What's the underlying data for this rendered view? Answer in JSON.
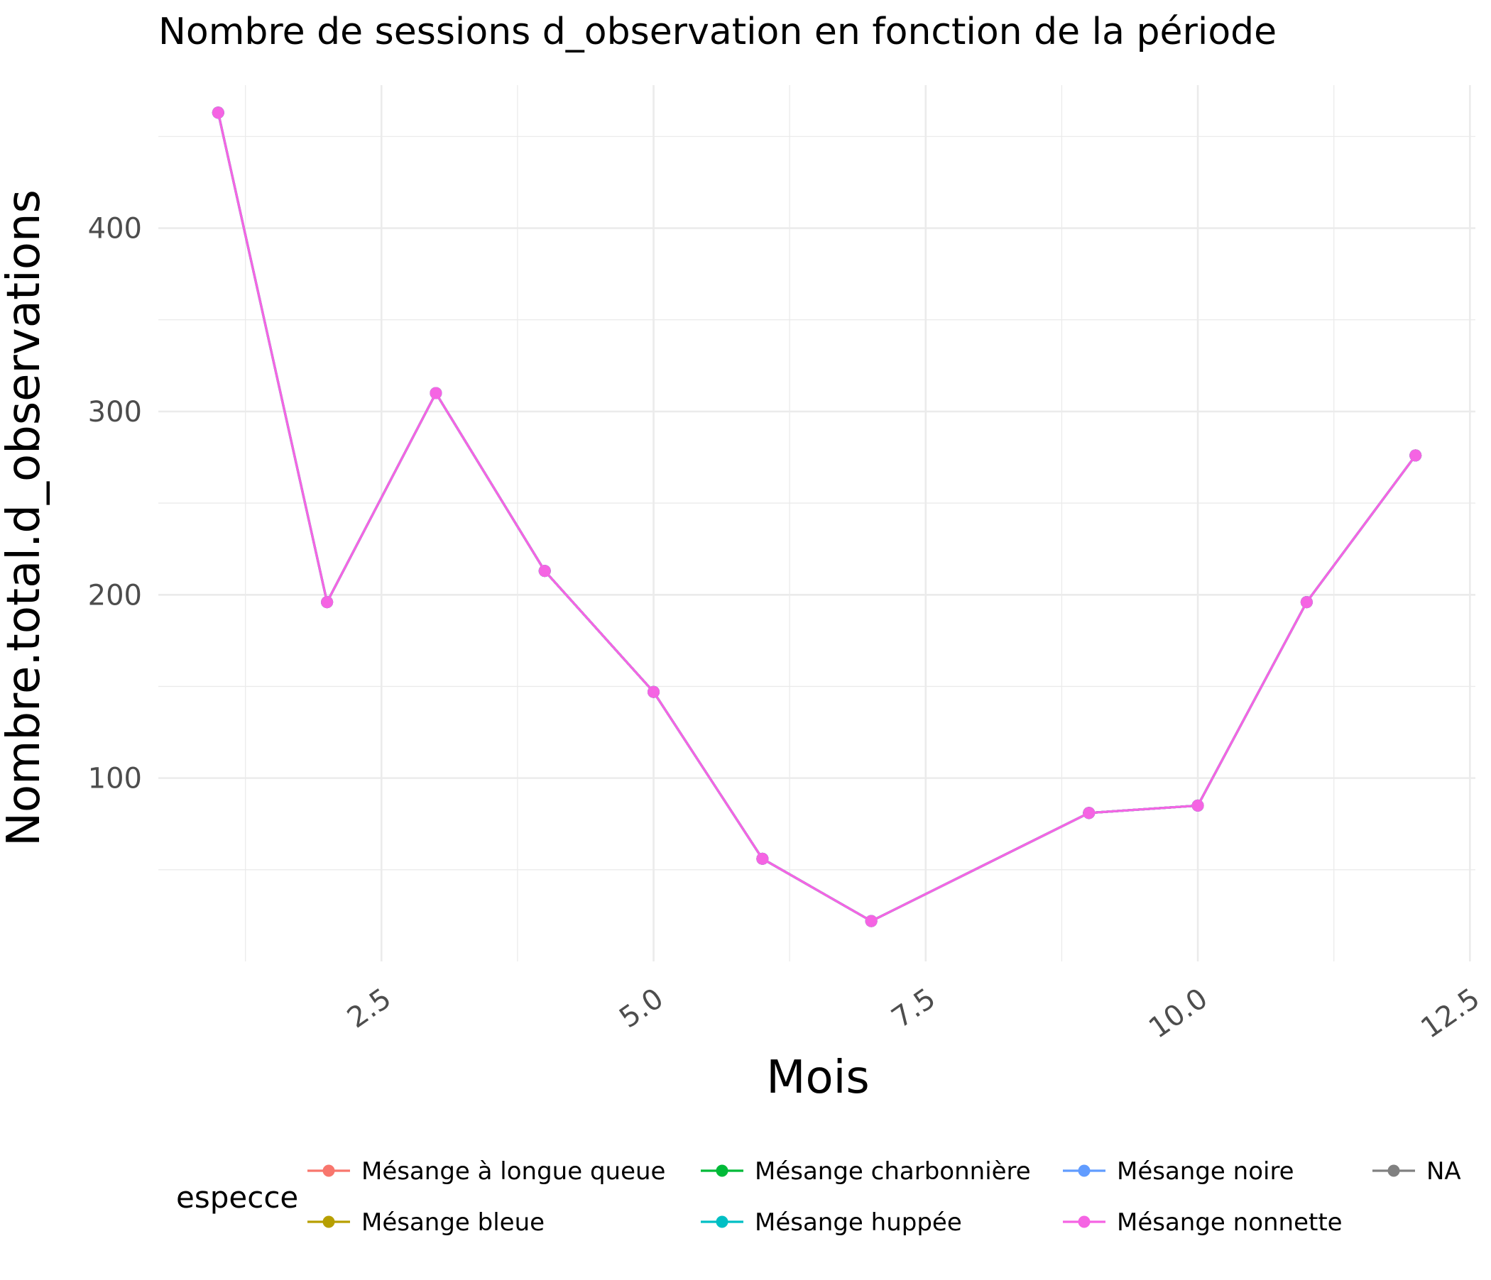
{
  "chart_data": {
    "type": "line",
    "title": "Nombre de sessions d_observation en fonction de la période",
    "xlabel": "Mois",
    "ylabel": "Nombre.total.d_observations",
    "xlim": [
      0.45,
      12.55
    ],
    "ylim": [
      0,
      478
    ],
    "x_ticks": [
      2.5,
      5.0,
      7.5,
      10.0,
      12.5
    ],
    "x_tick_labels": [
      "2.5",
      "5.0",
      "7.5",
      "10.0",
      "12.5"
    ],
    "x_minor_ticks": [
      1.25,
      3.75,
      6.25,
      8.75,
      11.25
    ],
    "y_ticks": [
      100,
      200,
      300,
      400
    ],
    "y_tick_labels": [
      "100",
      "200",
      "300",
      "400"
    ],
    "y_minor_ticks": [
      50,
      150,
      250,
      350,
      450
    ],
    "grid": true,
    "theme": "minimal",
    "legend": {
      "title": "especce",
      "position": "bottom"
    },
    "series": [
      {
        "name": "Mésange à longue queue",
        "color": "#F8766D",
        "x": [
          1,
          2,
          3,
          4,
          5,
          6,
          7,
          9,
          10,
          11,
          12
        ],
        "values": [
          463,
          196,
          310,
          213,
          147,
          56,
          22,
          81,
          85,
          196,
          276
        ]
      },
      {
        "name": "Mésange bleue",
        "color": "#B79F00",
        "x": [
          1,
          2,
          3,
          4,
          5,
          6,
          7,
          9,
          10,
          11,
          12
        ],
        "values": [
          463,
          196,
          310,
          213,
          147,
          56,
          22,
          81,
          85,
          196,
          276
        ]
      },
      {
        "name": "Mésange charbonnière",
        "color": "#00BA38",
        "x": [
          1,
          2,
          3,
          4,
          5,
          6,
          7,
          9,
          10,
          11,
          12
        ],
        "values": [
          463,
          196,
          310,
          213,
          147,
          56,
          22,
          81,
          85,
          196,
          276
        ]
      },
      {
        "name": "Mésange huppée",
        "color": "#00BFC4",
        "x": [
          1,
          2,
          3,
          4,
          5,
          6,
          7,
          9,
          10,
          11,
          12
        ],
        "values": [
          463,
          196,
          310,
          213,
          147,
          56,
          22,
          81,
          85,
          196,
          276
        ]
      },
      {
        "name": "Mésange noire",
        "color": "#619CFF",
        "x": [
          1,
          2,
          3,
          4,
          5,
          6,
          7,
          9,
          10,
          11,
          12
        ],
        "values": [
          463,
          196,
          310,
          213,
          147,
          56,
          22,
          81,
          85,
          196,
          276
        ]
      },
      {
        "name": "Mésange nonnette",
        "color": "#F564E3",
        "x": [
          1,
          2,
          3,
          4,
          5,
          6,
          7,
          9,
          10,
          11,
          12
        ],
        "values": [
          463,
          196,
          310,
          213,
          147,
          56,
          22,
          81,
          85,
          196,
          276
        ]
      },
      {
        "name": "NA",
        "color": "#808080",
        "x": [],
        "values": []
      }
    ]
  }
}
